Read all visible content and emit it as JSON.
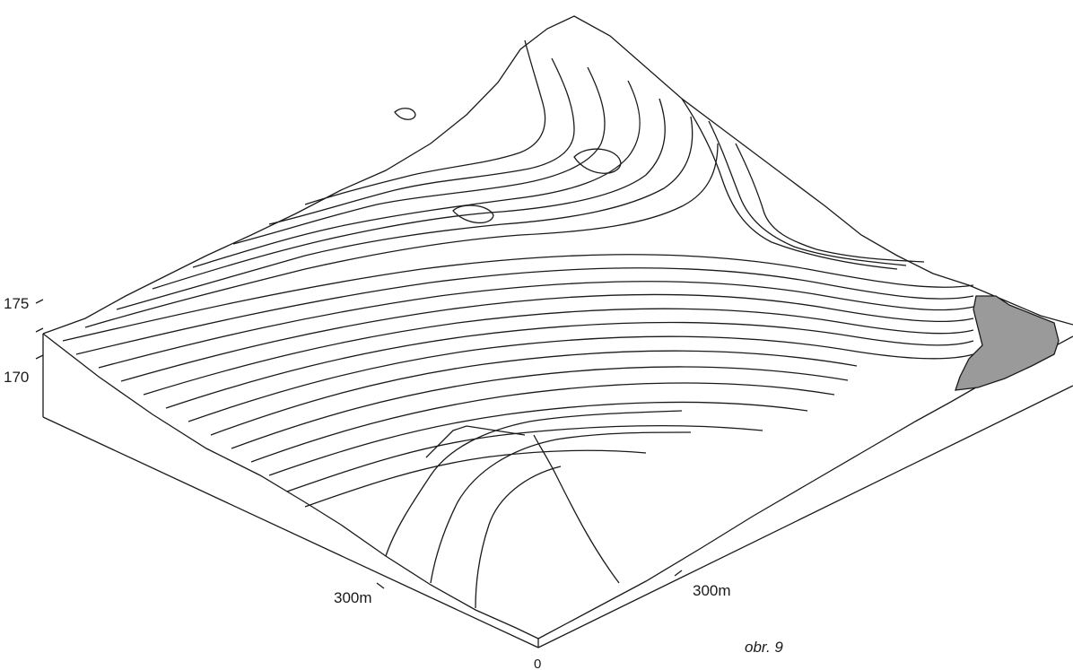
{
  "figure": {
    "z_axis": {
      "ticks": [
        "175",
        "170"
      ]
    },
    "x_axis": {
      "tick": "300m"
    },
    "y_axis": {
      "tick": "300m"
    },
    "origin_label": "0",
    "caption": "obr. 9"
  },
  "colors": {
    "line": "#1a1a1a",
    "background": "#ffffff",
    "water": "#9a9a9a"
  }
}
